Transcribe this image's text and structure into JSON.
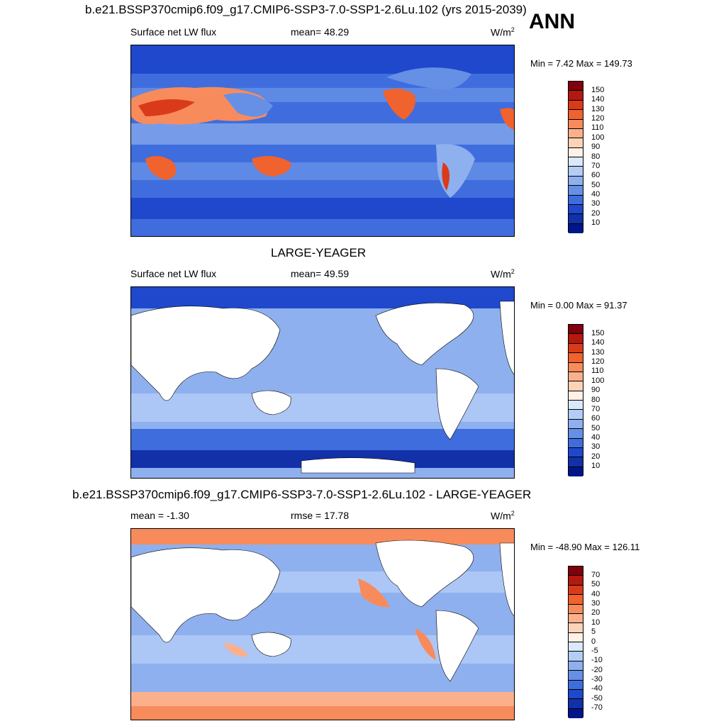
{
  "header": {
    "main_title": "b.e21.BSSP370cmip6.f09_g17.CMIP6-SSP3-7.0-SSP1-2.6Lu.102 (yrs 2015-2039)",
    "season": "ANN"
  },
  "panels": [
    {
      "title": "",
      "left_label": "Surface net LW flux",
      "center_label": "mean=  48.29",
      "unit_base": "W/m",
      "unit_exp": "2",
      "minmax": "Min =   7.42 Max = 149.73",
      "colorbar_labels": [
        "150",
        "140",
        "130",
        "120",
        "110",
        "100",
        "90",
        "80",
        "70",
        "60",
        "50",
        "40",
        "30",
        "20",
        "10"
      ],
      "colorbar_colors": [
        "#80000b",
        "#b3190f",
        "#d93b1a",
        "#f0622e",
        "#f88b5c",
        "#fbb08c",
        "#fdd3b8",
        "#fff1e6",
        "#dbe8fb",
        "#b3cdf6",
        "#8fb0ee",
        "#6690e6",
        "#3f6ddd",
        "#1f48cc",
        "#1231a8",
        "#00158a"
      ]
    },
    {
      "title": "LARGE-YEAGER",
      "left_label": "Surface net LW flux",
      "center_label": "mean=  49.59",
      "unit_base": "W/m",
      "unit_exp": "2",
      "minmax": "Min =   0.00 Max =  91.37",
      "colorbar_labels": [
        "150",
        "140",
        "130",
        "120",
        "110",
        "100",
        "90",
        "80",
        "70",
        "60",
        "50",
        "40",
        "30",
        "20",
        "10"
      ],
      "colorbar_colors": [
        "#80000b",
        "#b3190f",
        "#d93b1a",
        "#f0622e",
        "#f88b5c",
        "#fbb08c",
        "#fdd3b8",
        "#fff1e6",
        "#dbe8fb",
        "#b3cdf6",
        "#8fb0ee",
        "#6690e6",
        "#3f6ddd",
        "#1f48cc",
        "#1231a8",
        "#00158a"
      ]
    },
    {
      "title": "b.e21.BSSP370cmip6.f09_g17.CMIP6-SSP3-7.0-SSP1-2.6Lu.102 - LARGE-YEAGER",
      "left_label": "mean =  -1.30",
      "center_label": "rmse =  17.78",
      "unit_base": "W/m",
      "unit_exp": "2",
      "minmax": "Min = -48.90 Max = 126.11",
      "colorbar_labels": [
        "70",
        "50",
        "40",
        "30",
        "20",
        "10",
        "5",
        "0",
        "-5",
        "-10",
        "-20",
        "-30",
        "-40",
        "-50",
        "-70"
      ],
      "colorbar_colors": [
        "#80000b",
        "#b3190f",
        "#d93b1a",
        "#f0622e",
        "#f88b5c",
        "#fbb08c",
        "#fdd3b8",
        "#fff1e6",
        "#dbe8fb",
        "#b3cdf6",
        "#8fb0ee",
        "#6690e6",
        "#3f6ddd",
        "#1f48cc",
        "#1231a8",
        "#00158a"
      ]
    }
  ]
}
